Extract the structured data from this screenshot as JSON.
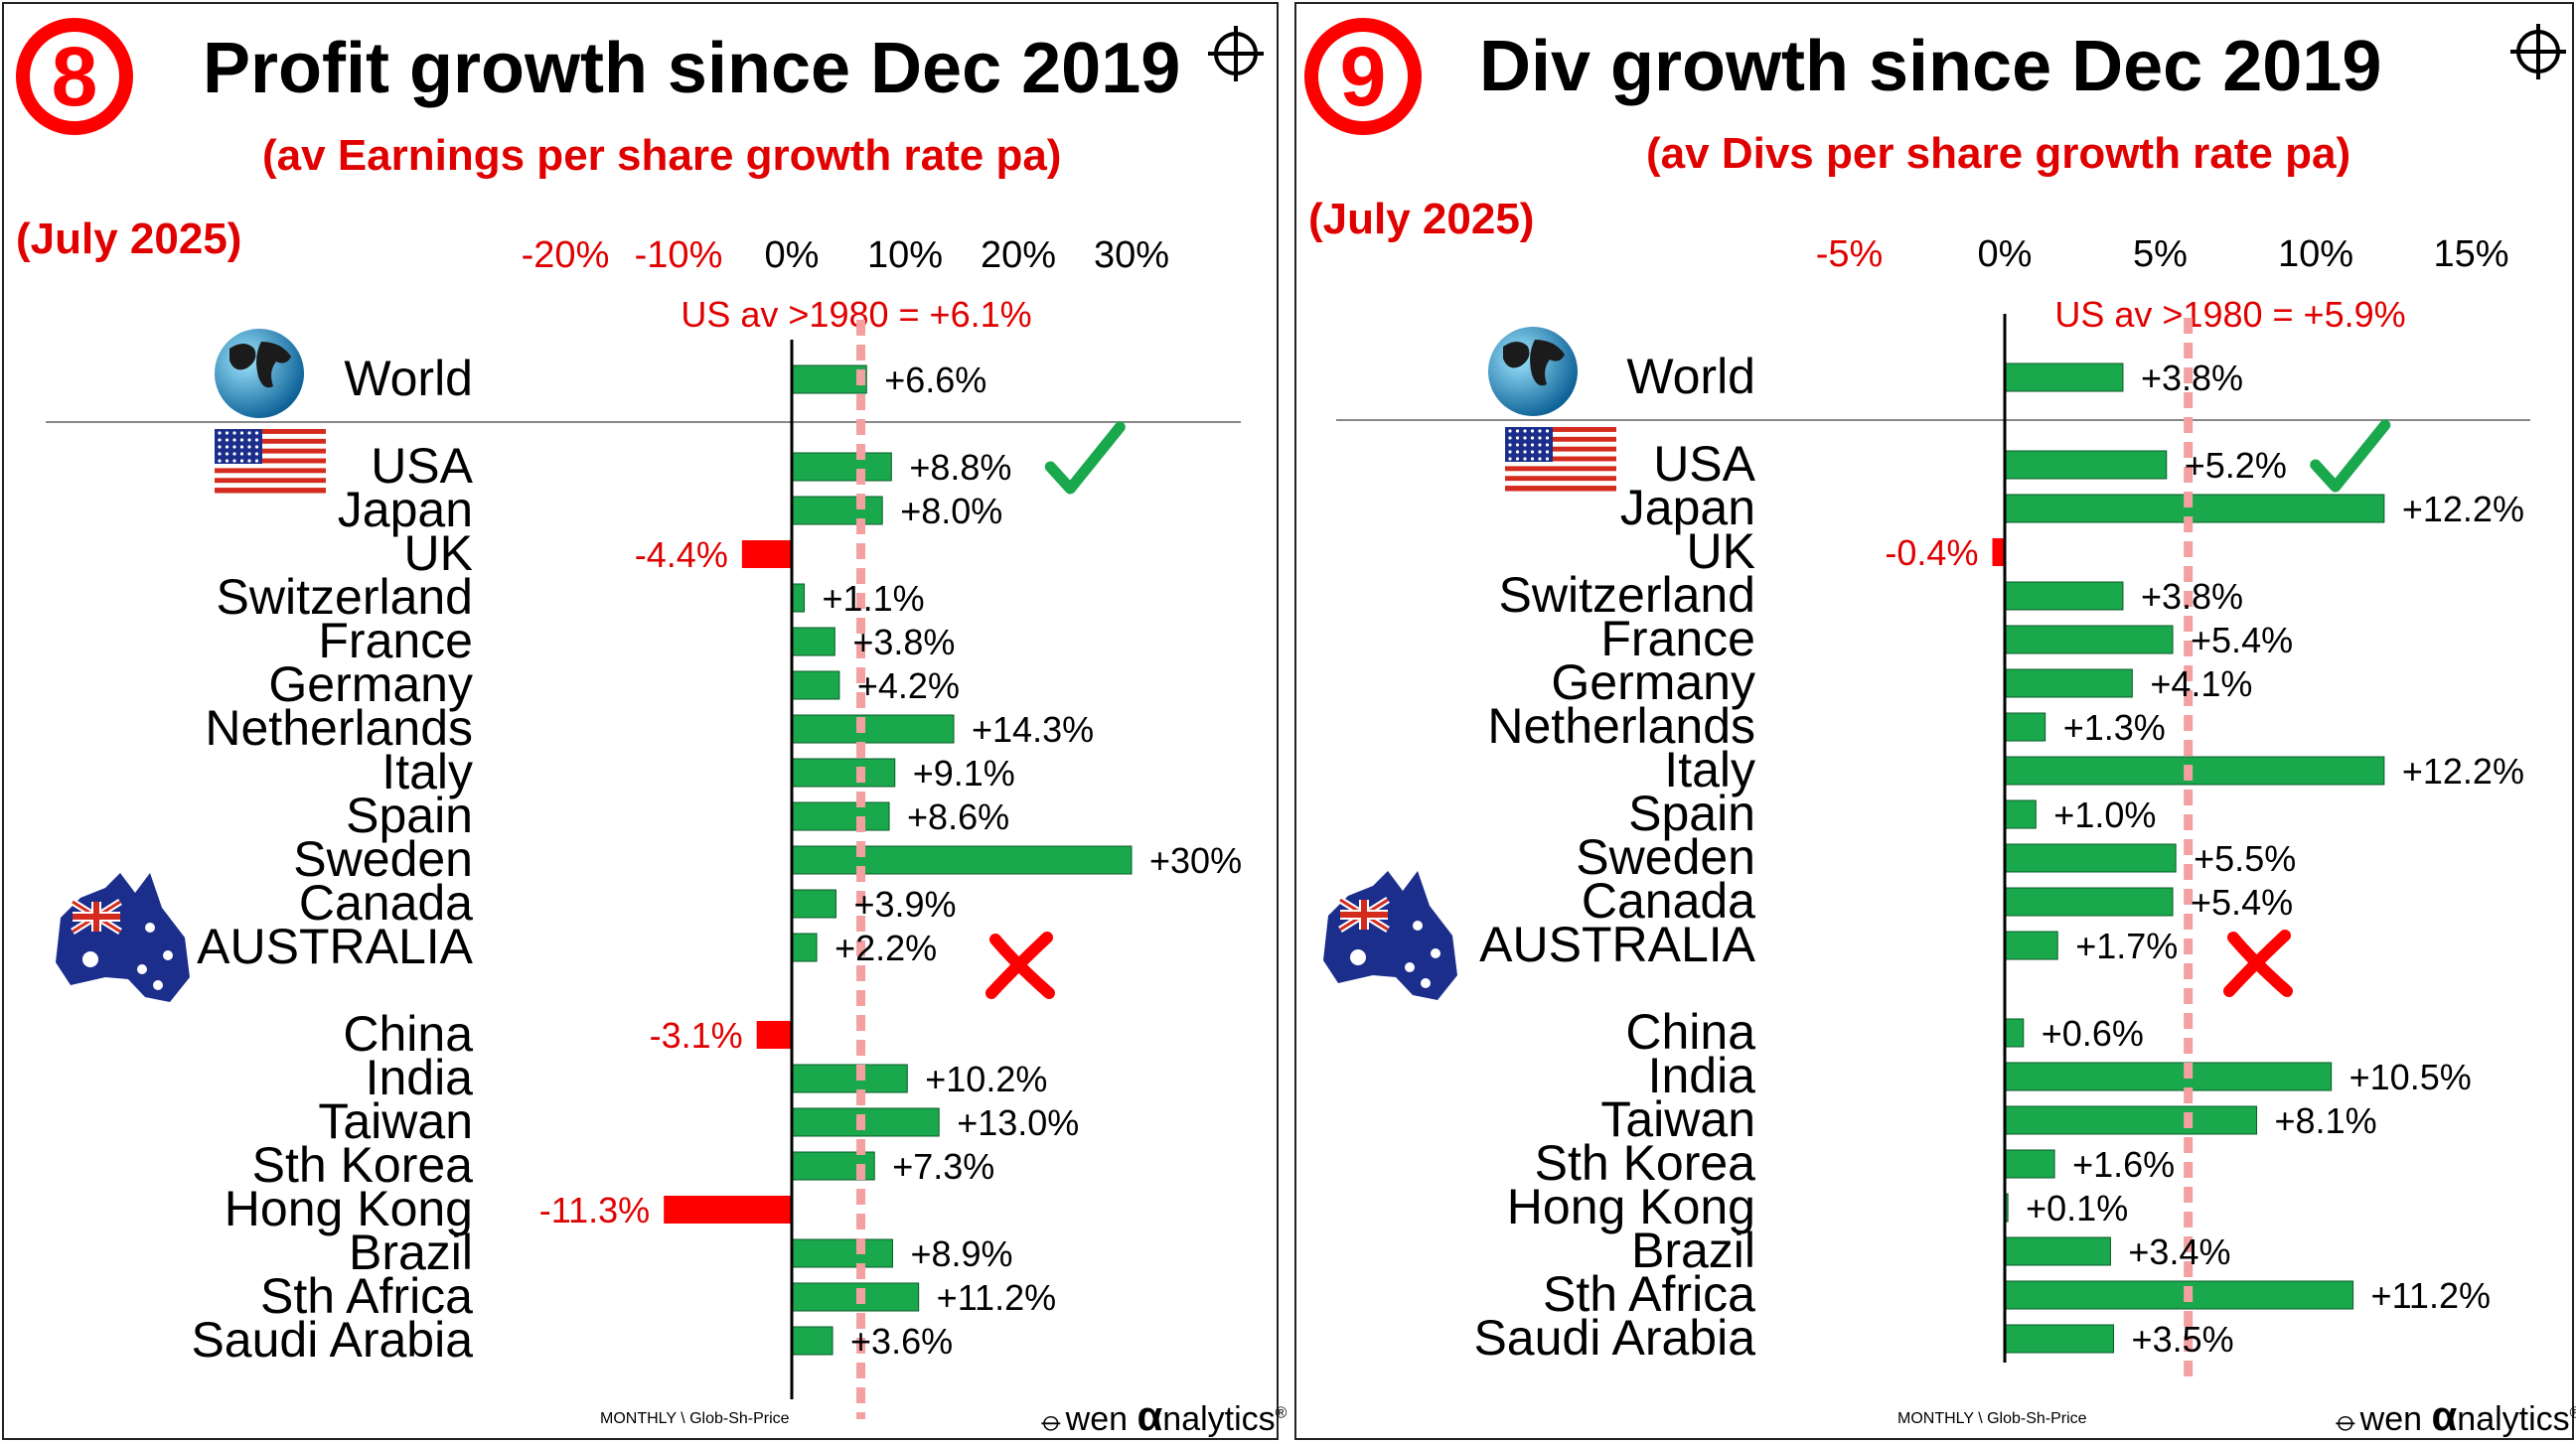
{
  "chart_data": [
    {
      "type": "bar",
      "orientation": "horizontal",
      "badge": "8",
      "title": "Profit growth since Dec 2019",
      "subtitle": "(av Earnings per share growth rate pa)",
      "date": "(July 2025)",
      "xlim": [
        -30,
        30
      ],
      "ticks": [
        {
          "value": -20,
          "label": "-20%"
        },
        {
          "value": -10,
          "label": "-10%"
        },
        {
          "value": 0,
          "label": "0%"
        },
        {
          "value": 10,
          "label": "10%"
        },
        {
          "value": 20,
          "label": "20%"
        },
        {
          "value": 30,
          "label": "30%"
        }
      ],
      "reference": {
        "value": 6.1,
        "label": "US av >1980 = +6.1%"
      },
      "categories": [
        "World",
        "USA",
        "Japan",
        "UK",
        "Switzerland",
        "France",
        "Germany",
        "Netherlands",
        "Italy",
        "Spain",
        "Sweden",
        "Canada",
        "AUSTRALIA",
        "China",
        "India",
        "Taiwan",
        "Sth Korea",
        "Hong Kong",
        "Brazil",
        "Sth Africa",
        "Saudi Arabia"
      ],
      "values": [
        6.6,
        8.8,
        8.0,
        -4.4,
        1.1,
        3.8,
        4.2,
        14.3,
        9.1,
        8.6,
        30,
        3.9,
        2.2,
        -3.1,
        10.2,
        13.0,
        7.3,
        -11.3,
        8.9,
        11.2,
        3.6
      ],
      "labels": [
        "+6.6%",
        "+8.8%",
        "+8.0%",
        "-4.4%",
        "+1.1%",
        "+3.8%",
        "+4.2%",
        "+14.3%",
        "+9.1%",
        "+8.6%",
        "+30%",
        "+3.9%",
        "+2.2%",
        "-3.1%",
        "+10.2%",
        "+13.0%",
        "+7.3%",
        "-11.3%",
        "+8.9%",
        "+11.2%",
        "+3.6%"
      ],
      "annotations": {
        "USA": "check-mark",
        "AUSTRALIA": "cross-mark"
      },
      "colors": {
        "positive": "#19a84b",
        "negative": "#ff0000",
        "reference": "#f4a0a0",
        "neg_label": "#e00000"
      },
      "footer_source": "MONTHLY \\ Glob-Sh-Price",
      "brand": {
        "prefix": "wen ",
        "alpha": "α",
        "suffix": "nalytics",
        "reg": "®"
      }
    },
    {
      "type": "bar",
      "orientation": "horizontal",
      "badge": "9",
      "title": "Div growth since Dec 2019",
      "subtitle": "(av  Divs per share growth rate pa)",
      "date": "(July 2025)",
      "xlim": [
        -7.5,
        17.5
      ],
      "ticks": [
        {
          "value": -5,
          "label": "-5%"
        },
        {
          "value": 0,
          "label": "0%"
        },
        {
          "value": 5,
          "label": "5%"
        },
        {
          "value": 10,
          "label": "10%"
        },
        {
          "value": 15,
          "label": "15%"
        }
      ],
      "reference": {
        "value": 5.9,
        "label": "US av >1980 = +5.9%"
      },
      "categories": [
        "World",
        "USA",
        "Japan",
        "UK",
        "Switzerland",
        "France",
        "Germany",
        "Netherlands",
        "Italy",
        "Spain",
        "Sweden",
        "Canada",
        "AUSTRALIA",
        "China",
        "India",
        "Taiwan",
        "Sth Korea",
        "Hong Kong",
        "Brazil",
        "Sth Africa",
        "Saudi Arabia"
      ],
      "values": [
        3.8,
        5.2,
        12.2,
        -0.4,
        3.8,
        5.4,
        4.1,
        1.3,
        12.2,
        1.0,
        5.5,
        5.4,
        1.7,
        0.6,
        10.5,
        8.1,
        1.6,
        0.1,
        3.4,
        11.2,
        3.5
      ],
      "labels": [
        "+3.8%",
        "+5.2%",
        "+12.2%",
        "-0.4%",
        "+3.8%",
        "+5.4%",
        "+4.1%",
        "+1.3%",
        "+12.2%",
        "+1.0%",
        "+5.5%",
        "+5.4%",
        "+1.7%",
        "+0.6%",
        "+10.5%",
        "+8.1%",
        "+1.6%",
        "+0.1%",
        "+3.4%",
        "+11.2%",
        "+3.5%"
      ],
      "annotations": {
        "USA": "check-mark",
        "AUSTRALIA": "cross-mark"
      },
      "colors": {
        "positive": "#19a84b",
        "negative": "#ff0000",
        "reference": "#f4a0a0",
        "neg_label": "#e00000"
      },
      "footer_source": "MONTHLY \\ Glob-Sh-Price",
      "brand": {
        "prefix": "wen ",
        "alpha": "α",
        "suffix": "nalytics",
        "reg": "®"
      }
    }
  ]
}
